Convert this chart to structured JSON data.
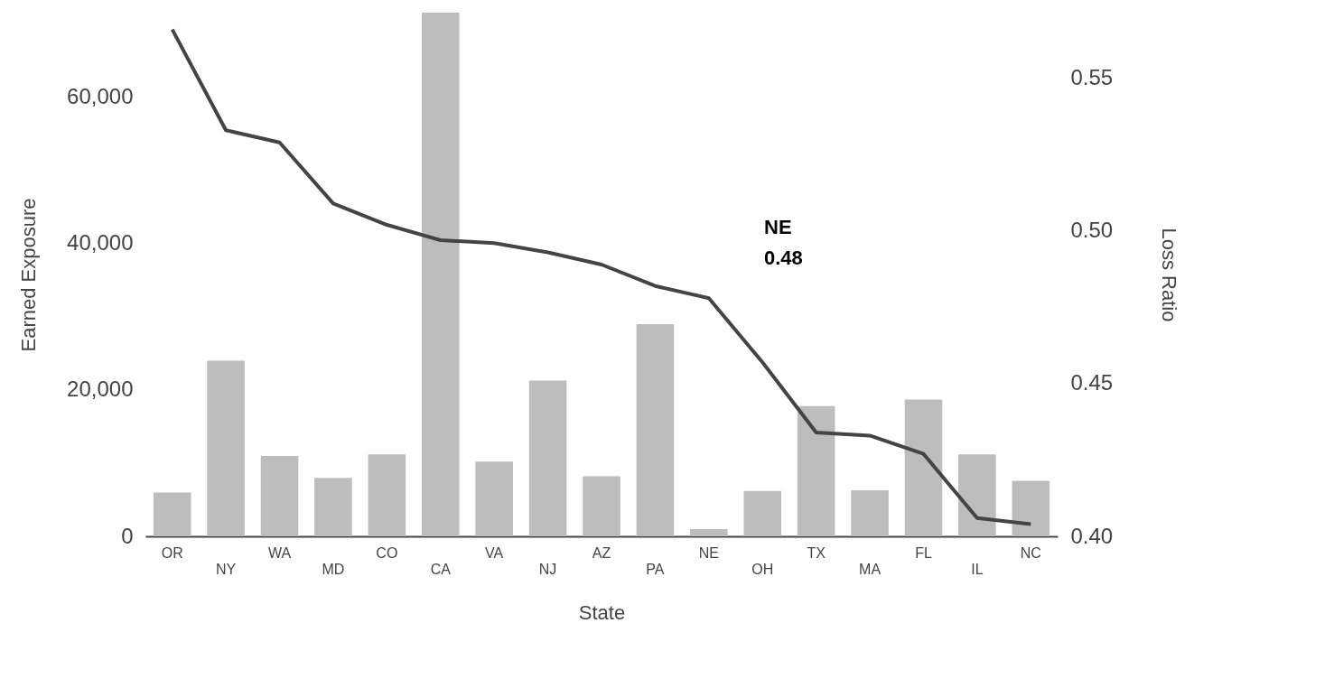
{
  "chart_data": {
    "type": "bar",
    "categories": [
      "OR",
      "NY",
      "WA",
      "MD",
      "CO",
      "CA",
      "VA",
      "NJ",
      "AZ",
      "PA",
      "NE",
      "OH",
      "TX",
      "MA",
      "FL",
      "IL",
      "NC"
    ],
    "xlabel": "State",
    "ylabel": "Earned Exposure",
    "y2label": "Loss Ratio",
    "series": [
      {
        "type": "bar",
        "color": "#bdbdbd",
        "values": [
          6000,
          24000,
          11000,
          8000,
          11200,
          71600,
          10200,
          21300,
          8200,
          29000,
          1000,
          6200,
          17800,
          6300,
          18700,
          11200,
          7600
        ]
      },
      {
        "type": "line",
        "axis": "y2",
        "color": "#444444",
        "values": [
          0.566,
          0.533,
          0.529,
          0.509,
          0.502,
          0.497,
          0.496,
          0.493,
          0.489,
          0.482,
          0.478,
          0.457,
          0.434,
          0.433,
          0.427,
          0.406,
          0.404
        ]
      }
    ],
    "ylim": [
      0,
      71600
    ],
    "yticks": [
      0,
      {
        "value": 20000,
        "label": "20,000"
      },
      {
        "value": 40000,
        "label": "40,000"
      },
      {
        "value": 60000,
        "label": "60,000"
      }
    ],
    "y2lim": [
      0.4,
      0.5715
    ],
    "y2ticks": [
      {
        "value": 0.4,
        "label": "0.40"
      },
      0.45,
      {
        "value": 0.5,
        "label": "0.50"
      },
      0.55
    ],
    "annotations": [
      "NE\n0.48"
    ]
  }
}
